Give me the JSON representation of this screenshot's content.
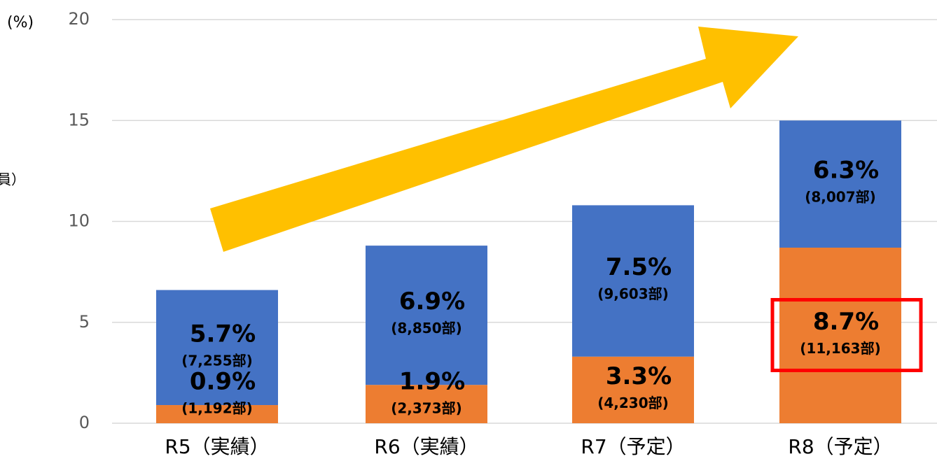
{
  "chart_data": {
    "type": "stacked_bar",
    "y_label": "(%)",
    "side_label": "員）",
    "categories": [
      "R5（実績）",
      "R6（実績）",
      "R7（予定）",
      "R8（予定）"
    ],
    "series": [
      {
        "name": "orange",
        "color": "#ed7d31",
        "values": [
          0.9,
          1.9,
          3.3,
          8.7
        ],
        "value_labels": [
          "0.9%",
          "1.9%",
          "3.3%",
          "8.7%"
        ],
        "count_labels": [
          "(1,192部)",
          "(2,373部)",
          "(4,230部)",
          "(11,163部)"
        ]
      },
      {
        "name": "blue",
        "color": "#4472c4",
        "values": [
          5.7,
          6.9,
          7.5,
          6.3
        ],
        "value_labels": [
          "5.7%",
          "6.9%",
          "7.5%",
          "6.3%"
        ],
        "count_labels": [
          "(7,255部)",
          "(8,850部)",
          "(9,603部)",
          "(8,007部)"
        ]
      }
    ],
    "ylim": [
      0,
      20
    ],
    "yticks": [
      0,
      5,
      10,
      15,
      20
    ],
    "grid": true
  }
}
